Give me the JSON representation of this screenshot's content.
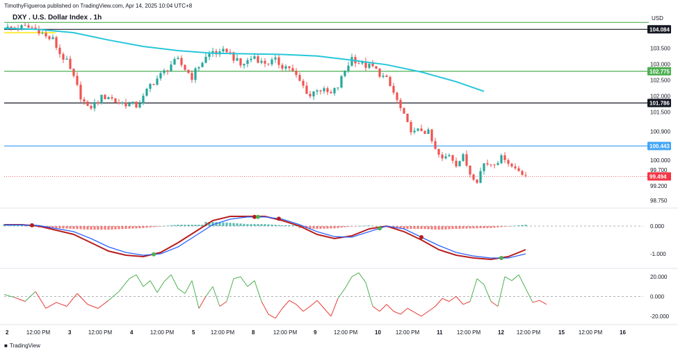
{
  "header": {
    "published": "TimothyFigueroa published on TradingView.com, Apr 14, 2025 10:04 UTC+8",
    "symbol": "DXY . U.S. Dollar Index . 1h",
    "currency": "USD",
    "logo": "TradingView"
  },
  "colors": {
    "up": "#26a69a",
    "down": "#ef5350",
    "ma": "#26c6da",
    "macd_fast": "#b71c1c",
    "macd_slow": "#2962ff",
    "osc_up": "#4caf50",
    "osc_down": "#e53935",
    "hline_black": "#131722",
    "hline_green": "#4caf50",
    "hline_blue": "#42a5f5",
    "hline_yellow": "#ffeb3b",
    "price_red": "#f23645"
  },
  "chart_data": [
    {
      "type": "candlestick",
      "title": "DXY . U.S. Dollar Index . 1h",
      "y_ticks": [
        "103.500",
        "103.000",
        "102.500",
        "102.000",
        "101.500",
        "100.900",
        "100.000",
        "99.700",
        "99.200",
        "98.750"
      ],
      "y_tick_values": [
        103.5,
        103.0,
        102.5,
        102.0,
        101.5,
        100.9,
        100.0,
        99.7,
        99.2,
        98.75
      ],
      "ylim": [
        98.55,
        104.35
      ],
      "x_ticks": [
        "2",
        "12:00 PM",
        "3",
        "12:00 PM",
        "4",
        "12:00 PM",
        "5",
        "12:00 PM",
        "8",
        "12:00 PM",
        "9",
        "12:00 PM",
        "10",
        "12:00 PM",
        "11",
        "12:00 PM",
        "12",
        "12:00 PM",
        "15",
        "12:00 PM",
        "16"
      ],
      "price_badges": [
        {
          "label": "104.084",
          "value": 104.084,
          "color": "#131722"
        },
        {
          "label": "102.775",
          "value": 102.775,
          "color": "#4caf50"
        },
        {
          "label": "101.786",
          "value": 101.786,
          "color": "#131722"
        },
        {
          "label": "100.443",
          "value": 100.443,
          "color": "#42a5f5"
        },
        {
          "label": "99.494",
          "value": 99.494,
          "color": "#f23645"
        }
      ],
      "horizontal_lines": [
        {
          "value": 104.3,
          "color": "#4caf50"
        },
        {
          "value": 104.084,
          "color": "#131722"
        },
        {
          "value": 102.775,
          "color": "#4caf50"
        },
        {
          "value": 101.786,
          "color": "#131722"
        },
        {
          "value": 100.443,
          "color": "#42a5f5"
        }
      ],
      "close_path": [
        [
          0,
          104.11
        ],
        [
          3,
          104.13
        ],
        [
          6,
          104.15
        ],
        [
          8,
          104.13
        ],
        [
          10,
          104.06
        ],
        [
          12,
          103.84
        ],
        [
          14,
          103.76
        ],
        [
          16,
          103.33
        ],
        [
          18,
          103.06
        ],
        [
          20,
          102.55
        ],
        [
          22,
          102.0
        ],
        [
          24,
          101.6
        ],
        [
          26,
          101.75
        ],
        [
          28,
          101.95
        ],
        [
          30,
          102.0
        ],
        [
          32,
          101.83
        ],
        [
          34,
          101.78
        ],
        [
          36,
          101.75
        ],
        [
          38,
          101.7
        ],
        [
          40,
          101.95
        ],
        [
          42,
          102.35
        ],
        [
          44,
          102.55
        ],
        [
          46,
          102.75
        ],
        [
          48,
          103.0
        ],
        [
          50,
          103.1
        ],
        [
          52,
          102.85
        ],
        [
          54,
          102.6
        ],
        [
          56,
          102.95
        ],
        [
          58,
          103.2
        ],
        [
          60,
          103.4
        ],
        [
          62,
          103.3
        ],
        [
          64,
          103.45
        ],
        [
          66,
          103.2
        ],
        [
          68,
          102.95
        ],
        [
          70,
          103.1
        ],
        [
          72,
          103.25
        ],
        [
          74,
          103.05
        ],
        [
          76,
          103.05
        ],
        [
          78,
          103.1
        ],
        [
          80,
          102.95
        ],
        [
          82,
          102.9
        ],
        [
          84,
          102.6
        ],
        [
          86,
          102.3
        ],
        [
          88,
          102.0
        ],
        [
          90,
          102.25
        ],
        [
          92,
          102.15
        ],
        [
          94,
          102.05
        ],
        [
          96,
          102.3
        ],
        [
          98,
          102.8
        ],
        [
          100,
          103.2
        ],
        [
          102,
          103.05
        ],
        [
          104,
          102.95
        ],
        [
          106,
          102.9
        ],
        [
          108,
          102.7
        ],
        [
          110,
          102.5
        ],
        [
          112,
          102.1
        ],
        [
          114,
          101.6
        ],
        [
          116,
          101.1
        ],
        [
          118,
          100.85
        ],
        [
          120,
          100.95
        ],
        [
          122,
          100.85
        ],
        [
          124,
          100.3
        ],
        [
          126,
          100.0
        ],
        [
          128,
          100.2
        ],
        [
          130,
          99.9
        ],
        [
          132,
          100.1
        ],
        [
          134,
          99.6
        ],
        [
          136,
          99.4
        ],
        [
          138,
          99.9
        ],
        [
          140,
          99.9
        ],
        [
          142,
          100.0
        ],
        [
          144,
          100.1
        ],
        [
          146,
          99.8
        ],
        [
          148,
          99.7
        ],
        [
          150,
          99.55
        ]
      ],
      "moving_average": [
        [
          0,
          104.12
        ],
        [
          10,
          104.08
        ],
        [
          20,
          103.98
        ],
        [
          30,
          103.75
        ],
        [
          40,
          103.55
        ],
        [
          50,
          103.42
        ],
        [
          60,
          103.34
        ],
        [
          70,
          103.32
        ],
        [
          80,
          103.3
        ],
        [
          90,
          103.25
        ],
        [
          100,
          103.12
        ],
        [
          110,
          102.98
        ],
        [
          120,
          102.75
        ],
        [
          130,
          102.45
        ],
        [
          138,
          102.15
        ]
      ]
    },
    {
      "type": "line",
      "ylim": [
        -1.45,
        0.55
      ],
      "y_ticks": [
        "0.000",
        "-1.000"
      ],
      "y_tick_values": [
        0,
        -1
      ],
      "series": [
        {
          "values": [
            [
              0,
              0.05
            ],
            [
              5,
              0.05
            ],
            [
              10,
              0.0
            ],
            [
              20,
              -0.3
            ],
            [
              25,
              -0.6
            ],
            [
              30,
              -0.9
            ],
            [
              35,
              -1.05
            ],
            [
              40,
              -1.1
            ],
            [
              45,
              -0.95
            ],
            [
              50,
              -0.6
            ],
            [
              55,
              -0.2
            ],
            [
              60,
              0.2
            ],
            [
              65,
              0.35
            ],
            [
              70,
              0.35
            ],
            [
              75,
              0.35
            ],
            [
              80,
              0.2
            ],
            [
              85,
              0.0
            ],
            [
              90,
              -0.3
            ],
            [
              95,
              -0.45
            ],
            [
              100,
              -0.35
            ],
            [
              105,
              -0.1
            ],
            [
              110,
              0.0
            ],
            [
              115,
              -0.2
            ],
            [
              120,
              -0.5
            ],
            [
              125,
              -0.85
            ],
            [
              130,
              -1.05
            ],
            [
              135,
              -1.15
            ],
            [
              140,
              -1.2
            ],
            [
              145,
              -1.1
            ],
            [
              150,
              -0.85
            ]
          ]
        },
        {
          "values": [
            [
              0,
              0.04
            ],
            [
              5,
              0.04
            ],
            [
              10,
              0.02
            ],
            [
              20,
              -0.2
            ],
            [
              25,
              -0.45
            ],
            [
              30,
              -0.75
            ],
            [
              35,
              -0.95
            ],
            [
              40,
              -1.05
            ],
            [
              45,
              -1.0
            ],
            [
              50,
              -0.75
            ],
            [
              55,
              -0.35
            ],
            [
              60,
              0.05
            ],
            [
              65,
              0.25
            ],
            [
              70,
              0.33
            ],
            [
              75,
              0.33
            ],
            [
              80,
              0.25
            ],
            [
              85,
              0.05
            ],
            [
              90,
              -0.2
            ],
            [
              95,
              -0.38
            ],
            [
              100,
              -0.4
            ],
            [
              105,
              -0.2
            ],
            [
              110,
              0.0
            ],
            [
              115,
              -0.1
            ],
            [
              120,
              -0.4
            ],
            [
              125,
              -0.7
            ],
            [
              130,
              -0.95
            ],
            [
              135,
              -1.08
            ],
            [
              140,
              -1.15
            ],
            [
              145,
              -1.15
            ],
            [
              150,
              -1.0
            ]
          ]
        }
      ]
    },
    {
      "type": "line",
      "ylim": [
        -27,
        27
      ],
      "y_ticks": [
        "20.000",
        "0.000",
        "-20.000"
      ],
      "y_tick_values": [
        20,
        0,
        -20
      ],
      "series": [
        {
          "values": [
            [
              0,
              2
            ],
            [
              3,
              -1
            ],
            [
              6,
              -5
            ],
            [
              9,
              5
            ],
            [
              12,
              -12
            ],
            [
              15,
              -6
            ],
            [
              18,
              -10
            ],
            [
              21,
              3
            ],
            [
              24,
              -8
            ],
            [
              27,
              -12
            ],
            [
              30,
              -4
            ],
            [
              33,
              5
            ],
            [
              36,
              18
            ],
            [
              38,
              22
            ],
            [
              40,
              10
            ],
            [
              42,
              16
            ],
            [
              44,
              4
            ],
            [
              46,
              15
            ],
            [
              48,
              22
            ],
            [
              50,
              8
            ],
            [
              52,
              3
            ],
            [
              54,
              16
            ],
            [
              56,
              -12
            ],
            [
              58,
              0
            ],
            [
              60,
              10
            ],
            [
              62,
              -10
            ],
            [
              64,
              -5
            ],
            [
              66,
              18
            ],
            [
              68,
              20
            ],
            [
              70,
              10
            ],
            [
              72,
              16
            ],
            [
              74,
              -5
            ],
            [
              76,
              -18
            ],
            [
              78,
              -22
            ],
            [
              80,
              -12
            ],
            [
              82,
              -4
            ],
            [
              84,
              -8
            ],
            [
              86,
              -15
            ],
            [
              88,
              -10
            ],
            [
              90,
              -4
            ],
            [
              92,
              -12
            ],
            [
              94,
              -20
            ],
            [
              96,
              -2
            ],
            [
              98,
              8
            ],
            [
              100,
              20
            ],
            [
              102,
              24
            ],
            [
              104,
              14
            ],
            [
              106,
              -10
            ],
            [
              108,
              -15
            ],
            [
              110,
              -8
            ],
            [
              112,
              -15
            ],
            [
              114,
              -18
            ],
            [
              116,
              -12
            ],
            [
              118,
              -16
            ],
            [
              120,
              -20
            ],
            [
              122,
              -15
            ],
            [
              124,
              -10
            ],
            [
              126,
              -2
            ],
            [
              128,
              -5
            ],
            [
              130,
              0
            ],
            [
              132,
              -8
            ],
            [
              134,
              -5
            ],
            [
              136,
              18
            ],
            [
              138,
              12
            ],
            [
              140,
              -5
            ],
            [
              142,
              -10
            ],
            [
              144,
              20
            ],
            [
              146,
              16
            ],
            [
              148,
              22
            ],
            [
              150,
              8
            ],
            [
              152,
              -6
            ],
            [
              154,
              -4
            ],
            [
              156,
              -8
            ]
          ]
        }
      ]
    }
  ]
}
